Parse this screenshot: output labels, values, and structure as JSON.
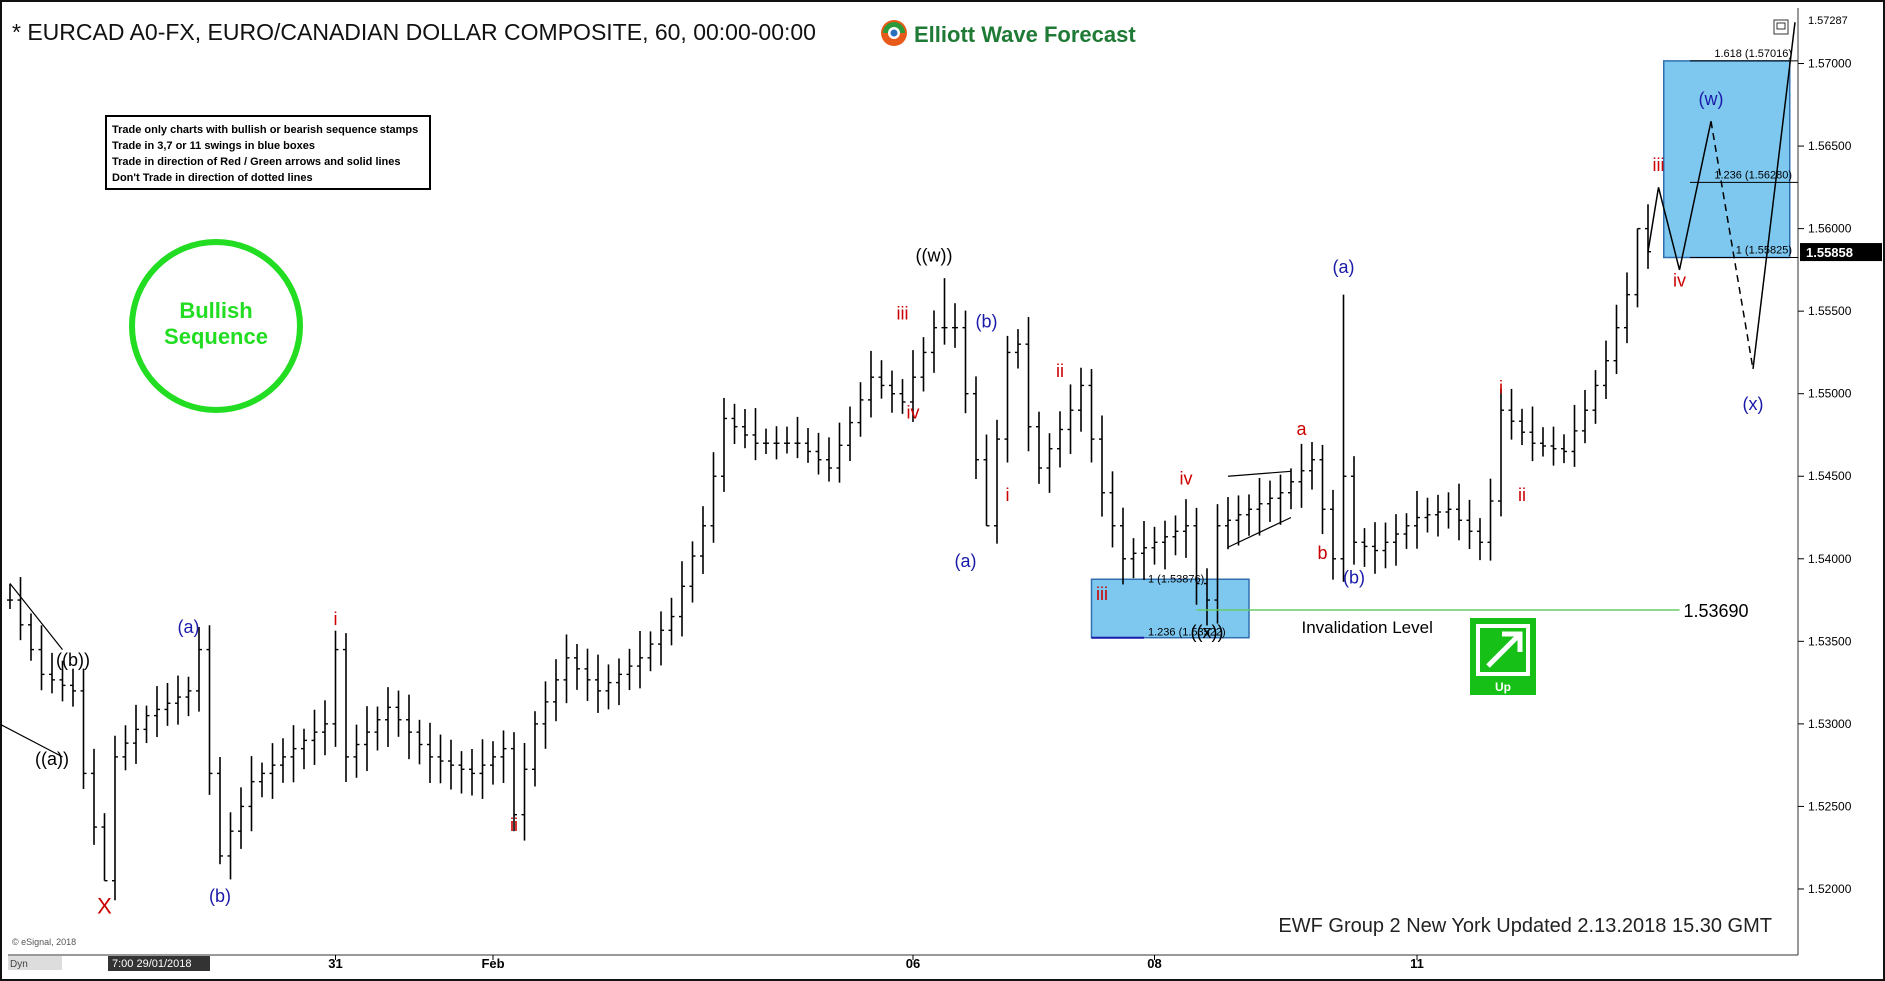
{
  "header": {
    "title": "* EURCAD A0-FX, EURO/CANADIAN DOLLAR COMPOSITE, 60, 00:00-00:00",
    "brand": "Elliott Wave Forecast"
  },
  "rules": [
    "Trade only charts with bullish or bearish sequence stamps",
    "Trade in 3,7 or 11 swings in blue boxes",
    "Trade in direction of Red / Green arrows and solid lines",
    "Don't Trade in direction of dotted lines"
  ],
  "stamp": {
    "line1": "Bullish",
    "line2": "Sequence",
    "color": "#22dd22"
  },
  "up_badge": {
    "label": "Up",
    "color": "#16c016"
  },
  "footer": {
    "update": "EWF Group 2 New York Updated 2.13.2018 15.30 GMT",
    "copyright": "© eSignal, 2018",
    "corner": "Dyn",
    "date_box": "7:00 29/01/2018"
  },
  "invalidation": {
    "label": "Invalidation Level",
    "value": "1.53690",
    "price": 1.5369,
    "color": "#66cc66"
  },
  "colors": {
    "red": "#cc0000",
    "blue": "#1a1aa8",
    "black": "#000000",
    "box_fill": "#7ec8f0",
    "box_stroke": "#2f6fb0"
  },
  "chart_data": {
    "type": "ohlc",
    "symbol": "EURCAD",
    "timeframe": "60",
    "ylim": [
      1.516,
      1.573
    ],
    "price_axis": {
      "ticks": [
        1.52,
        1.525,
        1.53,
        1.535,
        1.54,
        1.545,
        1.55,
        1.555,
        1.56,
        1.565,
        1.57
      ],
      "tick_labels": [
        "1.52000",
        "1.52500",
        "1.53000",
        "1.53500",
        "1.54000",
        "1.54500",
        "1.55000",
        "1.55500",
        "1.56000",
        "1.56500",
        "1.57000"
      ],
      "top_label": "1.57287",
      "current_price": "1.55858"
    },
    "x_axis": {
      "labels": [
        {
          "text": "31",
          "bar": 31
        },
        {
          "text": "Feb",
          "bar": 46
        },
        {
          "text": "06",
          "bar": 86
        },
        {
          "text": "08",
          "bar": 109
        },
        {
          "text": "11",
          "bar": 134
        }
      ]
    },
    "bar_anchors": [
      [
        0,
        1.5375
      ],
      [
        3,
        1.533
      ],
      [
        6,
        1.532
      ],
      [
        7,
        1.527
      ],
      [
        9,
        1.5205
      ],
      [
        10,
        1.528
      ],
      [
        13,
        1.5305
      ],
      [
        17,
        1.532
      ],
      [
        18,
        1.5345
      ],
      [
        19,
        1.527
      ],
      [
        20,
        1.522
      ],
      [
        23,
        1.5265
      ],
      [
        30,
        1.53
      ],
      [
        31,
        1.5345
      ],
      [
        32,
        1.528
      ],
      [
        36,
        1.531
      ],
      [
        40,
        1.528
      ],
      [
        44,
        1.527
      ],
      [
        47,
        1.5285
      ],
      [
        48,
        1.5245
      ],
      [
        50,
        1.53
      ],
      [
        53,
        1.534
      ],
      [
        56,
        1.532
      ],
      [
        60,
        1.534
      ],
      [
        63,
        1.5365
      ],
      [
        66,
        1.542
      ],
      [
        67,
        1.545
      ],
      [
        68,
        1.5485
      ],
      [
        71,
        1.547
      ],
      [
        75,
        1.547
      ],
      [
        78,
        1.5455
      ],
      [
        82,
        1.551
      ],
      [
        85,
        1.5495
      ],
      [
        88,
        1.554
      ],
      [
        90,
        1.554
      ],
      [
        92,
        1.546
      ],
      [
        93,
        1.542
      ],
      [
        95,
        1.5525
      ],
      [
        96,
        1.553
      ],
      [
        97,
        1.548
      ],
      [
        98,
        1.5455
      ],
      [
        101,
        1.549
      ],
      [
        102,
        1.5505
      ],
      [
        104,
        1.544
      ],
      [
        106,
        1.54
      ],
      [
        109,
        1.541
      ],
      [
        112,
        1.542
      ],
      [
        113,
        1.5385
      ],
      [
        114,
        1.5375
      ],
      [
        115,
        1.542
      ],
      [
        118,
        1.543
      ],
      [
        121,
        1.544
      ],
      [
        124,
        1.546
      ],
      [
        126,
        1.54
      ],
      [
        127,
        1.545
      ],
      [
        128,
        1.541
      ],
      [
        130,
        1.5405
      ],
      [
        132,
        1.5415
      ],
      [
        134,
        1.5425
      ],
      [
        137,
        1.543
      ],
      [
        140,
        1.541
      ],
      [
        141,
        1.5435
      ],
      [
        142,
        1.549
      ],
      [
        145,
        1.547
      ],
      [
        148,
        1.5465
      ],
      [
        150,
        1.549
      ],
      [
        152,
        1.552
      ],
      [
        154,
        1.556
      ],
      [
        155,
        1.56
      ],
      [
        156,
        1.5586
      ]
    ],
    "spikes": [
      {
        "bar": 9,
        "low": 1.5205
      },
      {
        "bar": 20,
        "low": 1.5215
      },
      {
        "bar": 89,
        "high": 1.557
      },
      {
        "bar": 93,
        "low": 1.542
      },
      {
        "bar": 127,
        "high": 1.556
      },
      {
        "bar": 155,
        "high": 1.56
      }
    ],
    "fib_levels": [
      {
        "label": "1.618 (1.57016)",
        "price": 1.57016
      },
      {
        "label": "1.236 (1.56280)",
        "price": 1.5628
      },
      {
        "label": "1 (1.55825)",
        "price": 1.55825
      },
      {
        "label": "1 (1.53876)",
        "price": 1.53876
      },
      {
        "label": "1.236 (1.53522)",
        "price": 1.53522
      }
    ],
    "projection": {
      "solid": [
        [
          156,
          1.5586
        ],
        [
          157,
          1.5625
        ],
        [
          159,
          1.5575
        ],
        [
          162,
          1.5665
        ]
      ],
      "dashed": [
        [
          162,
          1.5665
        ],
        [
          166,
          1.5515
        ]
      ],
      "solid2": [
        [
          166,
          1.5515
        ],
        [
          170,
          1.5725
        ]
      ]
    },
    "wave_labels": [
      {
        "text": "X",
        "bar": 9,
        "price": 1.5185,
        "color": "red"
      },
      {
        "text": "((a))",
        "bar": 4,
        "price": 1.5275,
        "color": "black"
      },
      {
        "text": "((b))",
        "bar": 6,
        "price": 1.5335,
        "color": "black"
      },
      {
        "text": "(a)",
        "bar": 17,
        "price": 1.5355,
        "color": "blue"
      },
      {
        "text": "(b)",
        "bar": 20,
        "price": 1.5192,
        "color": "blue"
      },
      {
        "text": "i",
        "bar": 31,
        "price": 1.536,
        "color": "red"
      },
      {
        "text": "ii",
        "bar": 48,
        "price": 1.5235,
        "color": "red"
      },
      {
        "text": "iii",
        "bar": 85,
        "price": 1.5545,
        "color": "red"
      },
      {
        "text": "iv",
        "bar": 86,
        "price": 1.5485,
        "color": "red"
      },
      {
        "text": "((w))",
        "bar": 88,
        "price": 1.558,
        "color": "black"
      },
      {
        "text": "(b)",
        "bar": 93,
        "price": 1.554,
        "color": "blue"
      },
      {
        "text": "(a)",
        "bar": 91,
        "price": 1.5395,
        "color": "blue"
      },
      {
        "text": "i",
        "bar": 95,
        "price": 1.5435,
        "color": "red"
      },
      {
        "text": "ii",
        "bar": 100,
        "price": 1.551,
        "color": "red"
      },
      {
        "text": "iii",
        "bar": 104,
        "price": 1.5375,
        "color": "red"
      },
      {
        "text": "iv",
        "bar": 112,
        "price": 1.5445,
        "color": "red"
      },
      {
        "text": "((x))",
        "bar": 114,
        "price": 1.5352,
        "color": "black"
      },
      {
        "text": "a",
        "bar": 123,
        "price": 1.5475,
        "color": "red"
      },
      {
        "text": "b",
        "bar": 125,
        "price": 1.54,
        "color": "red"
      },
      {
        "text": "(a)",
        "bar": 127,
        "price": 1.5573,
        "color": "blue"
      },
      {
        "text": "(b)",
        "bar": 128,
        "price": 1.5385,
        "color": "blue"
      },
      {
        "text": "i",
        "bar": 142,
        "price": 1.55,
        "color": "red"
      },
      {
        "text": "ii",
        "bar": 144,
        "price": 1.5435,
        "color": "red"
      },
      {
        "text": "iii",
        "bar": 157,
        "price": 1.5635,
        "color": "red"
      },
      {
        "text": "iv",
        "bar": 159,
        "price": 1.5565,
        "color": "red"
      },
      {
        "text": "(w)",
        "bar": 162,
        "price": 1.5675,
        "color": "blue"
      },
      {
        "text": "(x)",
        "bar": 166,
        "price": 1.549,
        "color": "blue"
      }
    ]
  }
}
